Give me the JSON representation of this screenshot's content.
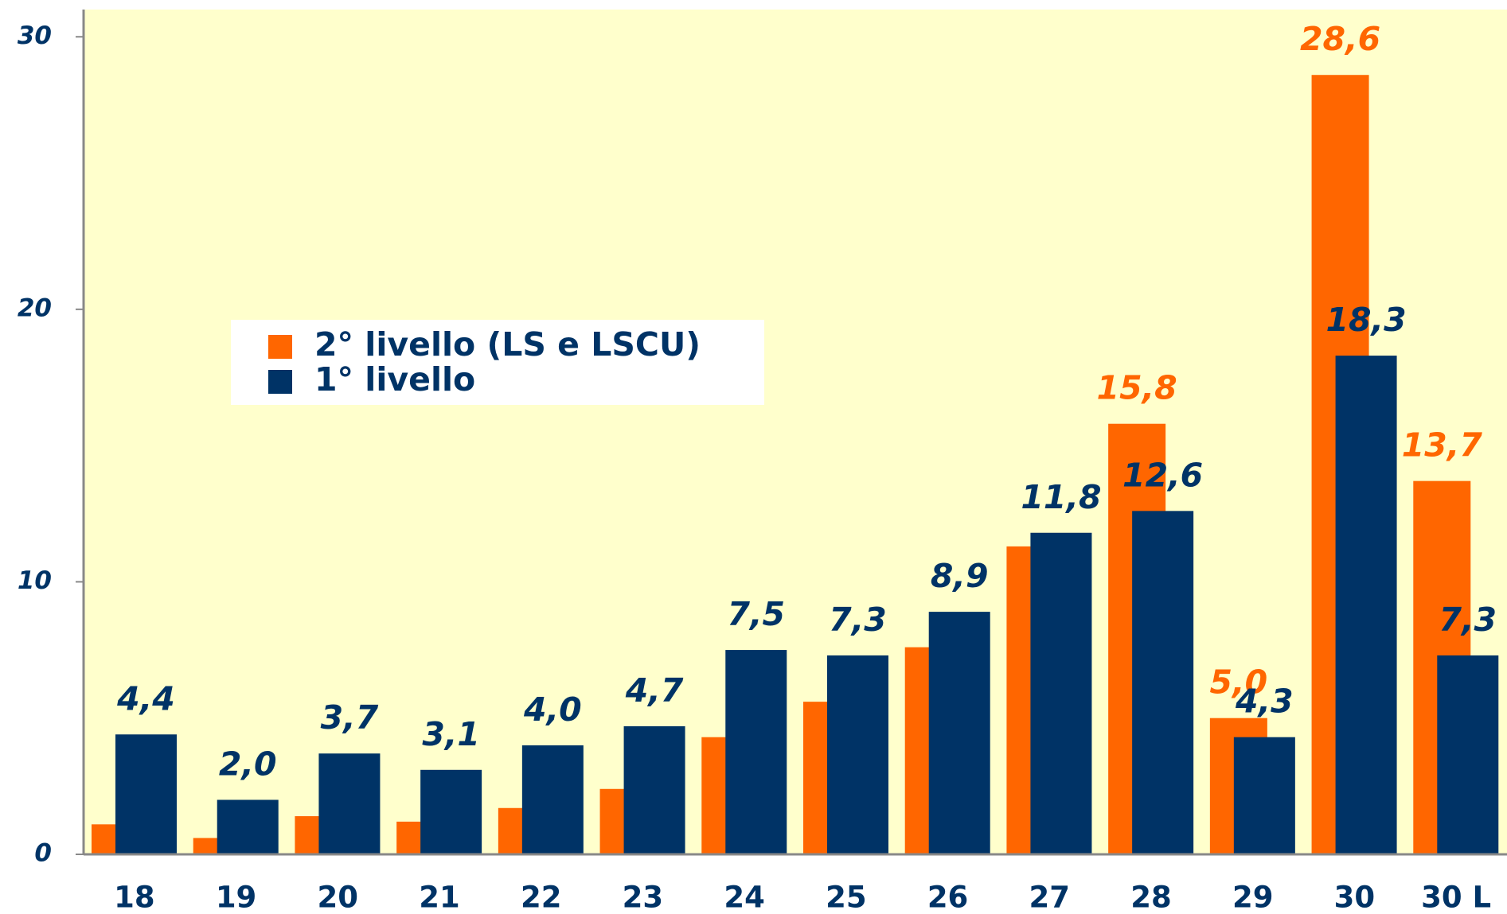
{
  "chart_data": {
    "type": "bar",
    "categories": [
      "18",
      "19",
      "20",
      "21",
      "22",
      "23",
      "24",
      "25",
      "26",
      "27",
      "28",
      "29",
      "30",
      "30 L"
    ],
    "series": [
      {
        "name": "2° livello (LS e LSCU)",
        "color": "#ff6600",
        "values": [
          1.1,
          0.6,
          1.4,
          1.2,
          1.7,
          2.4,
          4.3,
          5.6,
          7.6,
          11.3,
          15.8,
          5.0,
          28.6,
          13.7
        ],
        "value_labels": [
          null,
          null,
          null,
          null,
          null,
          null,
          null,
          null,
          null,
          null,
          "15,8",
          "5,0",
          "28,6",
          "13,7"
        ]
      },
      {
        "name": "1° livello",
        "color": "#003366",
        "values": [
          4.4,
          2.0,
          3.7,
          3.1,
          4.0,
          4.7,
          7.5,
          7.3,
          8.9,
          11.8,
          12.6,
          4.3,
          18.3,
          7.3
        ],
        "value_labels": [
          "4,4",
          "2,0",
          "3,7",
          "3,1",
          "4,0",
          "4,7",
          "7,5",
          "7,3",
          "8,9",
          "11,8",
          "12,6",
          "4,3",
          "18,3",
          "7,3"
        ]
      }
    ],
    "ylim": [
      0,
      31
    ],
    "yticks": [
      0,
      10,
      20,
      30
    ],
    "plot_background": "#ffffcc"
  }
}
